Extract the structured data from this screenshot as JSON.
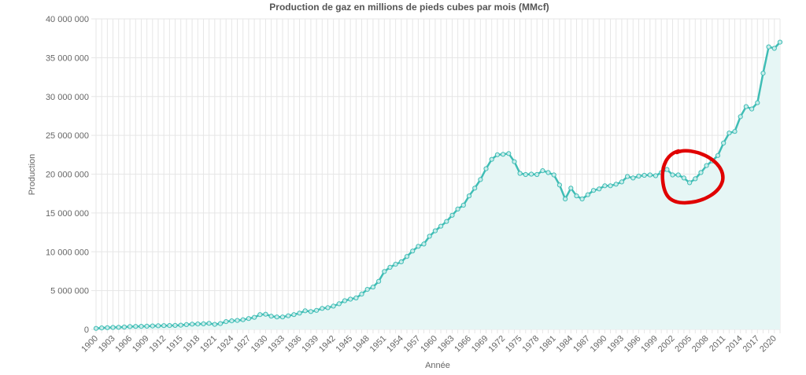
{
  "chart_data": {
    "type": "area",
    "title": "Production de gaz en millions de pieds cubes par mois (MMcf)",
    "xlabel": "Année",
    "ylabel": "Production",
    "ylim": [
      0,
      40000000
    ],
    "xlim": [
      1900,
      2021
    ],
    "yticks": [
      0,
      5000000,
      10000000,
      15000000,
      20000000,
      25000000,
      30000000,
      35000000,
      40000000
    ],
    "ytick_labels": [
      "0",
      "5 000 000",
      "10 000 000",
      "15 000 000",
      "20 000 000",
      "25 000 000",
      "30 000 000",
      "35 000 000",
      "40 000 000"
    ],
    "xtick_labels": [
      "1900",
      "1903",
      "1906",
      "1909",
      "1912",
      "1915",
      "1918",
      "1921",
      "1924",
      "1927",
      "1930",
      "1933",
      "1936",
      "1939",
      "1942",
      "1945",
      "1948",
      "1951",
      "1954",
      "1957",
      "1960",
      "1963",
      "1966",
      "1969",
      "1972",
      "1975",
      "1978",
      "1981",
      "1984",
      "1987",
      "1990",
      "1993",
      "1996",
      "1999",
      "2002",
      "2005",
      "2008",
      "2011",
      "2014",
      "2017",
      "2020"
    ],
    "grid": true,
    "legend": "none",
    "line_color": "#3fbdb5",
    "fill_color": "#e6f6f5",
    "annotation_color": "#e00000",
    "series": [
      {
        "x": [
          1900,
          1901,
          1902,
          1903,
          1904,
          1905,
          1906,
          1907,
          1908,
          1909,
          1910,
          1911,
          1912,
          1913,
          1914,
          1915,
          1916,
          1917,
          1918,
          1919,
          1920,
          1921,
          1922,
          1923,
          1924,
          1925,
          1926,
          1927,
          1928,
          1929,
          1930,
          1931,
          1932,
          1933,
          1934,
          1935,
          1936,
          1937,
          1938,
          1939,
          1940,
          1941,
          1942,
          1943,
          1944,
          1945,
          1946,
          1947,
          1948,
          1949,
          1950,
          1951,
          1952,
          1953,
          1954,
          1955,
          1956,
          1957,
          1958,
          1959,
          1960,
          1961,
          1962,
          1963,
          1964,
          1965,
          1966,
          1967,
          1968,
          1969,
          1970,
          1971,
          1972,
          1973,
          1974,
          1975,
          1976,
          1977,
          1978,
          1979,
          1980,
          1981,
          1982,
          1983,
          1984,
          1985,
          1986,
          1987,
          1988,
          1989,
          1990,
          1991,
          1992,
          1993,
          1994,
          1995,
          1996,
          1997,
          1998,
          1999,
          2000,
          2001,
          2002,
          2003,
          2004,
          2005,
          2006,
          2007,
          2008,
          2009,
          2010,
          2011,
          2012,
          2013,
          2014,
          2015,
          2016,
          2017,
          2018,
          2019,
          2020,
          2021
        ],
        "values": [
          128000,
          190000,
          220000,
          250000,
          270000,
          300000,
          360000,
          380000,
          390000,
          420000,
          450000,
          470000,
          490000,
          500000,
          520000,
          550000,
          620000,
          680000,
          700000,
          720000,
          780000,
          650000,
          750000,
          1000000,
          1100000,
          1150000,
          1250000,
          1400000,
          1550000,
          1900000,
          1950000,
          1700000,
          1600000,
          1600000,
          1750000,
          1900000,
          2100000,
          2400000,
          2300000,
          2450000,
          2700000,
          2800000,
          3000000,
          3300000,
          3700000,
          3900000,
          4050000,
          4550000,
          5150000,
          5450000,
          6200000,
          7450000,
          8000000,
          8400000,
          8700000,
          9400000,
          10100000,
          10700000,
          11000000,
          12000000,
          12700000,
          13300000,
          13900000,
          14700000,
          15500000,
          16000000,
          17200000,
          18200000,
          19300000,
          20700000,
          21900000,
          22500000,
          22550000,
          22650000,
          21600000,
          20100000,
          19950000,
          20000000,
          19950000,
          20450000,
          20200000,
          19900000,
          18600000,
          16800000,
          18200000,
          17200000,
          16800000,
          17350000,
          17900000,
          18100000,
          18500000,
          18500000,
          18700000,
          19000000,
          19700000,
          19500000,
          19750000,
          19850000,
          19900000,
          19800000,
          20200000,
          20600000,
          19900000,
          19900000,
          19500000,
          18900000,
          19400000,
          20200000,
          21100000,
          21700000,
          22400000,
          24000000,
          25300000,
          25500000,
          27400000,
          28700000,
          28400000,
          29200000,
          33000000,
          36400000,
          36200000,
          37000000
        ]
      }
    ]
  }
}
